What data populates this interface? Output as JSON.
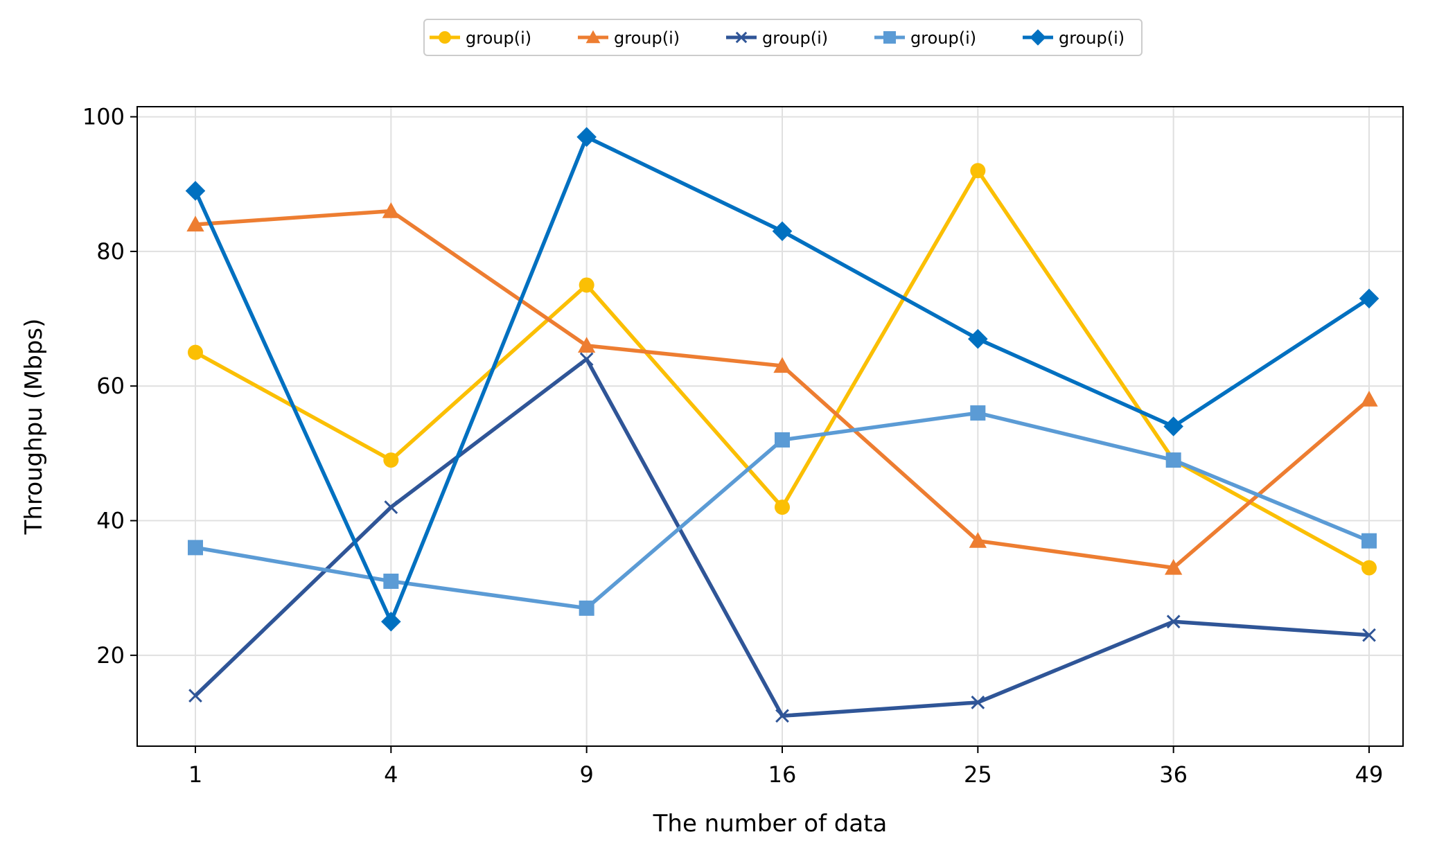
{
  "chart_data": {
    "type": "line",
    "x": [
      1,
      4,
      9,
      16,
      25,
      36,
      49
    ],
    "categories": [
      "1",
      "4",
      "9",
      "16",
      "25",
      "36",
      "49"
    ],
    "xlabel": "The number of data",
    "ylabel": "Throughpu (Mbps)",
    "ylim": [
      6.5,
      101.5
    ],
    "yticks": [
      20,
      40,
      60,
      80,
      100
    ],
    "grid": true,
    "legend_position": "top-center",
    "series": [
      {
        "name": "group(i)",
        "color": "#FBBF04",
        "marker": "circle",
        "values": [
          65,
          49,
          75,
          42,
          92,
          49,
          33
        ]
      },
      {
        "name": "group(i)",
        "color": "#ED7D31",
        "marker": "triangle",
        "values": [
          84,
          86,
          66,
          63,
          37,
          33,
          58
        ]
      },
      {
        "name": "group(i)",
        "color": "#2F5597",
        "marker": "x",
        "values": [
          14,
          42,
          64,
          11,
          13,
          25,
          23
        ]
      },
      {
        "name": "group(i)",
        "color": "#5B9BD5",
        "marker": "square",
        "values": [
          36,
          31,
          27,
          52,
          56,
          49,
          37
        ]
      },
      {
        "name": "group(i)",
        "color": "#0070C0",
        "marker": "diamond",
        "values": [
          89,
          25,
          97,
          83,
          67,
          54,
          73
        ]
      }
    ]
  }
}
